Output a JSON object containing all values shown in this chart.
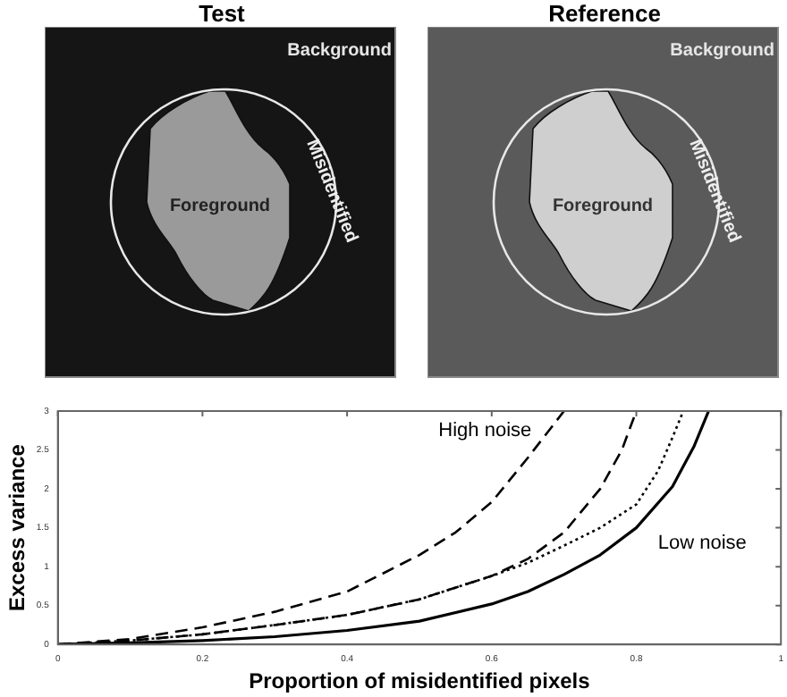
{
  "chart_data": [
    {
      "type": "other",
      "title": "Test",
      "annotations": [
        "Background",
        "Foreground",
        "Misidentified"
      ]
    },
    {
      "type": "other",
      "title": "Reference",
      "annotations": [
        "Background",
        "Foreground",
        "Misidentified"
      ]
    },
    {
      "type": "line",
      "xlabel": "Proportion of misidentified pixels",
      "ylabel": "Excess variance",
      "xlim": [
        0,
        1
      ],
      "xticks": [
        0,
        0.2,
        0.4,
        0.6,
        0.8,
        1
      ],
      "ylim": [
        0,
        3
      ],
      "yticks": [
        0,
        0.5,
        1,
        1.5,
        2,
        2.5,
        3
      ],
      "grid": false,
      "legend": false,
      "marker": "none",
      "series": [
        {
          "name": "High noise",
          "color": "#000000",
          "line_style": "dashed",
          "x": [
            0,
            0.1,
            0.2,
            0.3,
            0.4,
            0.5,
            0.55,
            0.6,
            0.65,
            0.7
          ],
          "values": [
            0,
            0.07,
            0.22,
            0.42,
            0.68,
            1.15,
            1.44,
            1.83,
            2.4,
            3
          ]
        },
        {
          "color": "#000000",
          "line_style": "dashed",
          "x": [
            0,
            0.1,
            0.2,
            0.3,
            0.4,
            0.5,
            0.6,
            0.65,
            0.7,
            0.75,
            0.78,
            0.8
          ],
          "values": [
            0,
            0.05,
            0.13,
            0.25,
            0.38,
            0.58,
            0.88,
            1.1,
            1.44,
            2,
            2.5,
            3
          ]
        },
        {
          "color": "#000000",
          "line_style": "dotted",
          "x": [
            0,
            0.1,
            0.2,
            0.3,
            0.4,
            0.5,
            0.6,
            0.65,
            0.7,
            0.75,
            0.8,
            0.83,
            0.85,
            0.865
          ],
          "values": [
            0,
            0.05,
            0.13,
            0.25,
            0.38,
            0.58,
            0.88,
            1.05,
            1.27,
            1.5,
            1.8,
            2.23,
            2.66,
            3
          ]
        },
        {
          "name": "Low noise",
          "color": "#000000",
          "line_style": "solid",
          "x": [
            0,
            0.1,
            0.2,
            0.3,
            0.4,
            0.5,
            0.6,
            0.65,
            0.7,
            0.75,
            0.8,
            0.85,
            0.88,
            0.9
          ],
          "values": [
            0,
            0.02,
            0.05,
            0.1,
            0.18,
            0.3,
            0.52,
            0.68,
            0.9,
            1.15,
            1.5,
            2.03,
            2.55,
            3
          ]
        }
      ]
    }
  ]
}
